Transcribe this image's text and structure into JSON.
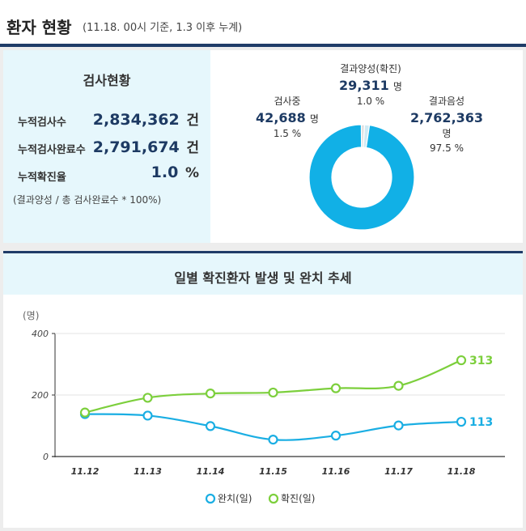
{
  "header": {
    "title": "환자 현황",
    "subtitle": "(11.18. 00시 기준, 1.3 이후 누계)"
  },
  "test_status": {
    "title": "검사현황",
    "rows": [
      {
        "label": "누적검사수",
        "value": "2,834,362",
        "unit": "건"
      },
      {
        "label": "누적검사완료수",
        "value": "2,791,674",
        "unit": "건"
      },
      {
        "label": "누적확진율",
        "value": "1.0",
        "unit": "%"
      }
    ],
    "note": "(결과양성 / 총 검사완료수 * 100%)"
  },
  "donut": {
    "unit": "명",
    "segments": [
      {
        "name": "결과양성(확진)",
        "value": "29,311",
        "pct": "1.0 %",
        "share": 1.0,
        "color": "#e0e0e0"
      },
      {
        "name": "검사중",
        "value": "42,688",
        "pct": "1.5 %",
        "share": 1.5,
        "color": "#cfeaf4"
      },
      {
        "name": "결과음성",
        "value": "2,762,363",
        "pct": "97.5 %",
        "share": 97.5,
        "color": "#11b0e6"
      }
    ]
  },
  "chart_title": "일별 확진환자 발생 및 완치 추세",
  "colors": {
    "navy": "#1f3c68",
    "recovered": "#1aaee3",
    "confirmed": "#7ccf3c"
  },
  "chart_data": {
    "type": "line",
    "title": "일별 확진환자 발생 및 완치 추세",
    "ylabel": "(명)",
    "categories": [
      "11.12",
      "11.13",
      "11.14",
      "11.15",
      "11.16",
      "11.17",
      "11.18"
    ],
    "ylim": [
      0,
      400
    ],
    "yticks": [
      "0",
      "200",
      "400"
    ],
    "series": [
      {
        "name": "완치(일)",
        "values": [
          138,
          133,
          99,
          55,
          68,
          101,
          113
        ],
        "end_label": "113",
        "color": "#1aaee3"
      },
      {
        "name": "확진(일)",
        "values": [
          143,
          191,
          205,
          208,
          222,
          230,
          313
        ],
        "end_label": "313",
        "color": "#7ccf3c"
      }
    ],
    "legend_position": "bottom"
  }
}
